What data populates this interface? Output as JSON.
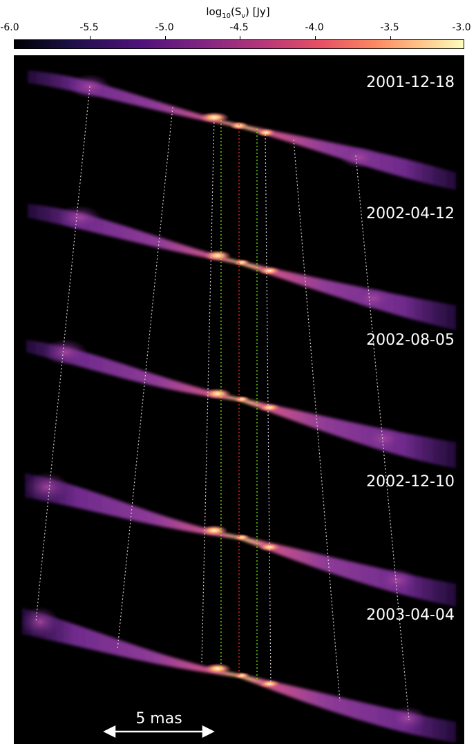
{
  "colorbar": {
    "title_base": "log",
    "title_sub": "10",
    "title_rest": "(S",
    "title_sub2": "ν",
    "title_end": ") [Jy]",
    "ticks": [
      "-6.0",
      "-5.5",
      "-5.0",
      "-4.5",
      "-4.0",
      "-3.5",
      "-3.0"
    ],
    "colormap": "magma"
  },
  "epochs": [
    {
      "date": "2001-12-18"
    },
    {
      "date": "2002-04-12"
    },
    {
      "date": "2002-08-05"
    },
    {
      "date": "2002-12-10"
    },
    {
      "date": "2003-04-04"
    }
  ],
  "scale_bar": {
    "label": "5 mas"
  },
  "colors": {
    "background": "#000000",
    "tracking_lines_white": "#d0d0d0",
    "tracking_lines_green": "#7cfc00",
    "tracking_line_red": "#ff3030"
  }
}
